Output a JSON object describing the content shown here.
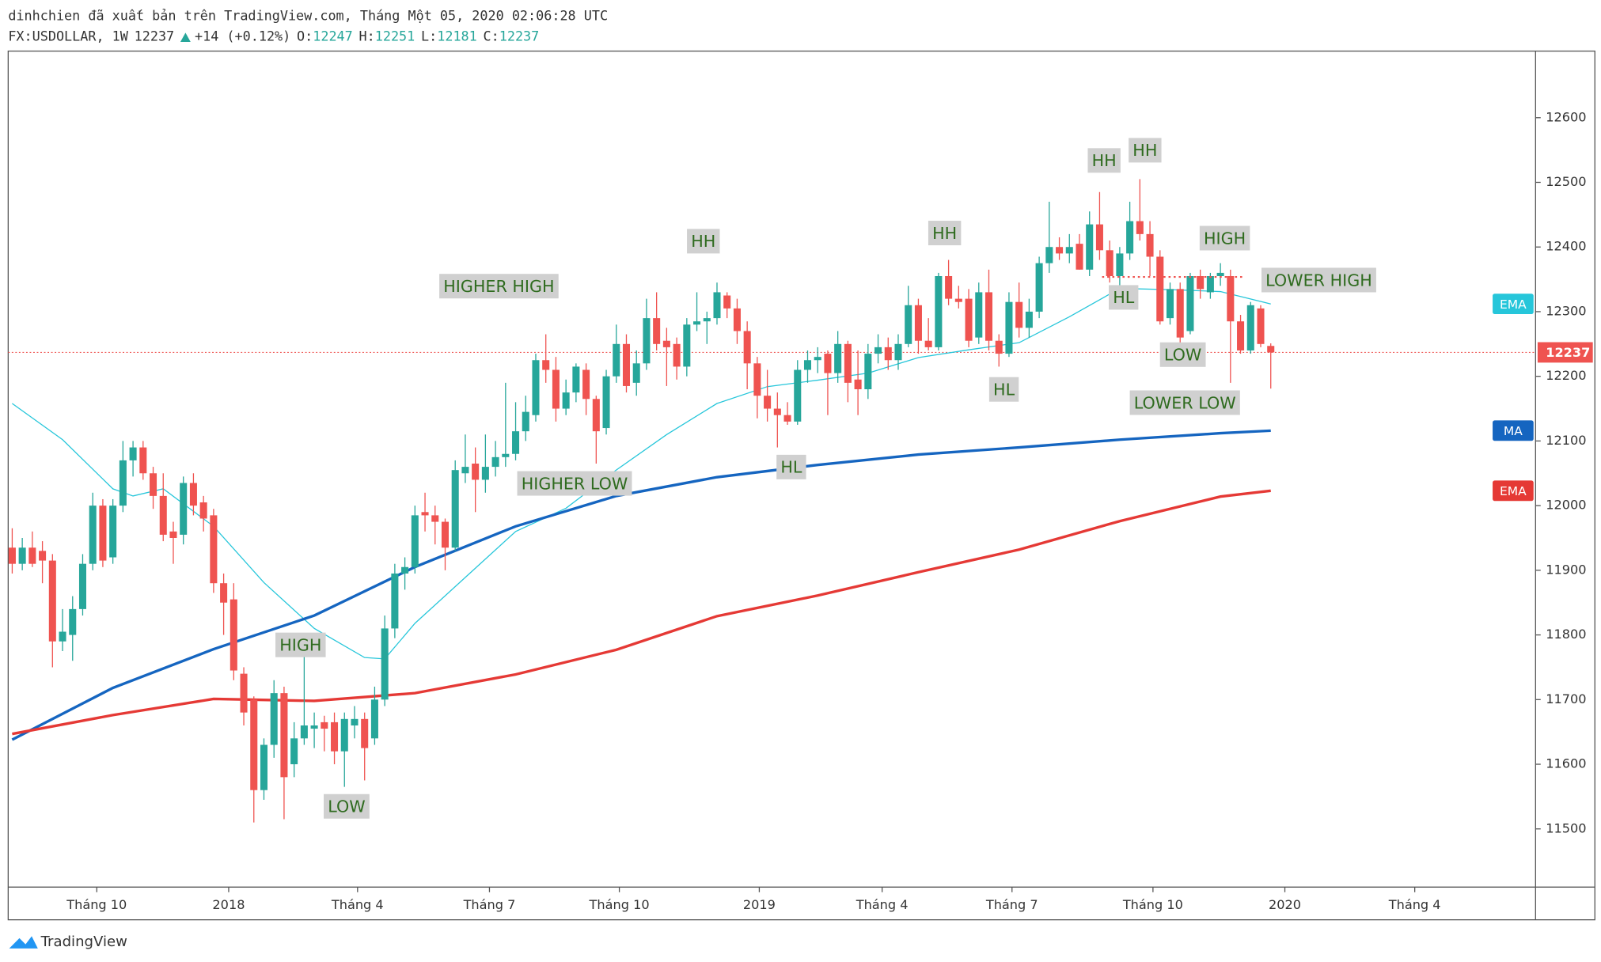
{
  "header": {
    "title": "dinhchien đã xuất bản trên TradingView.com, Tháng Một 05, 2020 02:06:28 UTC",
    "symbol": "FX:USDOLLAR, 1W",
    "change": "+14 (+0.12%)",
    "open_label": "O:",
    "high_label": "H:",
    "low_label": "L:",
    "close_label": "C:"
  },
  "footer": {
    "brand": "TradingView"
  },
  "chart_data": {
    "type": "candlestick",
    "up_color": "#26a69a",
    "down_color": "#ef5350",
    "candles": [
      [
        11935,
        11965,
        11895,
        11910
      ],
      [
        11910,
        11950,
        11900,
        11935
      ],
      [
        11935,
        11960,
        11905,
        11910
      ],
      [
        11930,
        11945,
        11880,
        11915
      ],
      [
        11915,
        11925,
        11750,
        11790
      ],
      [
        11790,
        11840,
        11775,
        11805
      ],
      [
        11800,
        11860,
        11760,
        11840
      ],
      [
        11840,
        11925,
        11830,
        11910
      ],
      [
        11910,
        12020,
        11900,
        12000
      ],
      [
        12000,
        12010,
        11905,
        11915
      ],
      [
        11920,
        12010,
        11910,
        12000
      ],
      [
        12000,
        12100,
        11990,
        12070
      ],
      [
        12070,
        12100,
        12045,
        12090
      ],
      [
        12090,
        12100,
        12040,
        12050
      ],
      [
        12050,
        12060,
        11995,
        12015
      ],
      [
        12015,
        12050,
        11945,
        11955
      ],
      [
        11960,
        11975,
        11910,
        11950
      ],
      [
        11955,
        12045,
        11940,
        12035
      ],
      [
        12035,
        12050,
        11985,
        12000
      ],
      [
        12005,
        12015,
        11960,
        11980
      ],
      [
        11985,
        11995,
        11865,
        11880
      ],
      [
        11880,
        11895,
        11800,
        11850
      ],
      [
        11855,
        11880,
        11730,
        11745
      ],
      [
        11740,
        11750,
        11660,
        11680
      ],
      [
        11700,
        11705,
        11510,
        11560
      ],
      [
        11560,
        11640,
        11545,
        11630
      ],
      [
        11630,
        11730,
        11610,
        11710
      ],
      [
        11710,
        11720,
        11515,
        11580
      ],
      [
        11600,
        11665,
        11580,
        11640
      ],
      [
        11640,
        11770,
        11630,
        11660
      ],
      [
        11655,
        11680,
        11625,
        11660
      ],
      [
        11665,
        11675,
        11620,
        11655
      ],
      [
        11665,
        11680,
        11600,
        11620
      ],
      [
        11620,
        11680,
        11565,
        11670
      ],
      [
        11660,
        11690,
        11640,
        11670
      ],
      [
        11670,
        11680,
        11575,
        11625
      ],
      [
        11640,
        11720,
        11630,
        11700
      ],
      [
        11700,
        11830,
        11690,
        11810
      ],
      [
        11810,
        11910,
        11795,
        11895
      ],
      [
        11895,
        11920,
        11870,
        11905
      ],
      [
        11905,
        12000,
        11895,
        11985
      ],
      [
        11990,
        12020,
        11960,
        11985
      ],
      [
        11985,
        12000,
        11940,
        11975
      ],
      [
        11975,
        11980,
        11900,
        11935
      ],
      [
        11935,
        12070,
        11930,
        12055
      ],
      [
        12050,
        12110,
        12035,
        12060
      ],
      [
        12065,
        12090,
        11990,
        12040
      ],
      [
        12040,
        12110,
        12020,
        12060
      ],
      [
        12060,
        12100,
        12045,
        12075
      ],
      [
        12075,
        12190,
        12060,
        12080
      ],
      [
        12080,
        12160,
        12070,
        12115
      ],
      [
        12115,
        12170,
        12100,
        12145
      ],
      [
        12140,
        12235,
        12130,
        12225
      ],
      [
        12225,
        12265,
        12190,
        12210
      ],
      [
        12210,
        12230,
        12130,
        12150
      ],
      [
        12150,
        12195,
        12140,
        12175
      ],
      [
        12175,
        12220,
        12160,
        12215
      ],
      [
        12210,
        12220,
        12140,
        12165
      ],
      [
        12165,
        12170,
        12065,
        12115
      ],
      [
        12120,
        12210,
        12110,
        12200
      ],
      [
        12200,
        12280,
        12190,
        12250
      ],
      [
        12250,
        12265,
        12175,
        12185
      ],
      [
        12190,
        12240,
        12170,
        12220
      ],
      [
        12220,
        12320,
        12210,
        12290
      ],
      [
        12290,
        12330,
        12240,
        12250
      ],
      [
        12255,
        12275,
        12185,
        12245
      ],
      [
        12250,
        12260,
        12195,
        12215
      ],
      [
        12215,
        12290,
        12200,
        12280
      ],
      [
        12280,
        12330,
        12270,
        12285
      ],
      [
        12285,
        12300,
        12250,
        12290
      ],
      [
        12290,
        12345,
        12280,
        12330
      ],
      [
        12325,
        12330,
        12290,
        12305
      ],
      [
        12305,
        12320,
        12250,
        12270
      ],
      [
        12270,
        12285,
        12180,
        12220
      ],
      [
        12220,
        12230,
        12135,
        12170
      ],
      [
        12170,
        12210,
        12130,
        12150
      ],
      [
        12150,
        12175,
        12090,
        12140
      ],
      [
        12140,
        12160,
        12125,
        12130
      ],
      [
        12130,
        12225,
        12125,
        12210
      ],
      [
        12210,
        12240,
        12190,
        12225
      ],
      [
        12225,
        12245,
        12205,
        12230
      ],
      [
        12235,
        12240,
        12140,
        12205
      ],
      [
        12205,
        12270,
        12190,
        12250
      ],
      [
        12250,
        12255,
        12160,
        12190
      ],
      [
        12195,
        12240,
        12140,
        12180
      ],
      [
        12180,
        12250,
        12165,
        12235
      ],
      [
        12235,
        12265,
        12220,
        12245
      ],
      [
        12245,
        12260,
        12210,
        12225
      ],
      [
        12225,
        12265,
        12210,
        12250
      ],
      [
        12250,
        12340,
        12245,
        12310
      ],
      [
        12310,
        12320,
        12235,
        12255
      ],
      [
        12255,
        12290,
        12240,
        12245
      ],
      [
        12245,
        12360,
        12240,
        12355
      ],
      [
        12355,
        12380,
        12310,
        12320
      ],
      [
        12320,
        12340,
        12305,
        12315
      ],
      [
        12320,
        12335,
        12245,
        12255
      ],
      [
        12260,
        12345,
        12250,
        12330
      ],
      [
        12330,
        12365,
        12240,
        12255
      ],
      [
        12255,
        12265,
        12215,
        12235
      ],
      [
        12235,
        12330,
        12230,
        12315
      ],
      [
        12315,
        12345,
        12260,
        12275
      ],
      [
        12275,
        12320,
        12260,
        12300
      ],
      [
        12300,
        12385,
        12290,
        12375
      ],
      [
        12375,
        12470,
        12360,
        12400
      ],
      [
        12400,
        12415,
        12380,
        12390
      ],
      [
        12390,
        12420,
        12375,
        12400
      ],
      [
        12405,
        12420,
        12365,
        12365
      ],
      [
        12365,
        12455,
        12355,
        12435
      ],
      [
        12435,
        12485,
        12380,
        12395
      ],
      [
        12395,
        12410,
        12345,
        12355
      ],
      [
        12355,
        12400,
        12340,
        12390
      ],
      [
        12390,
        12470,
        12380,
        12440
      ],
      [
        12440,
        12505,
        12410,
        12420
      ],
      [
        12420,
        12440,
        12355,
        12385
      ],
      [
        12385,
        12395,
        12280,
        12285
      ],
      [
        12290,
        12345,
        12280,
        12335
      ],
      [
        12335,
        12345,
        12250,
        12260
      ],
      [
        12270,
        12360,
        12265,
        12355
      ],
      [
        12355,
        12365,
        12320,
        12335
      ],
      [
        12330,
        12360,
        12320,
        12355
      ],
      [
        12355,
        12375,
        12340,
        12360
      ],
      [
        12355,
        12365,
        12190,
        12285
      ],
      [
        12285,
        12295,
        12235,
        12240
      ],
      [
        12240,
        12315,
        12235,
        12310
      ],
      [
        12305,
        12310,
        12245,
        12250
      ],
      [
        12247,
        12251,
        12181,
        12237
      ]
    ],
    "lines": [
      {
        "name": "EMA",
        "color": "#26c6da",
        "width": 1,
        "x": [
          0,
          5,
          10,
          12,
          15,
          20,
          25,
          30,
          35,
          37,
          40,
          45,
          50,
          55,
          60,
          65,
          70,
          75,
          80,
          85,
          90,
          95,
          100,
          105,
          110,
          115,
          120,
          125
        ],
        "values": [
          12158,
          12102,
          12026,
          12015,
          12026,
          11968,
          11881,
          11810,
          11765,
          11763,
          11818,
          11889,
          11960,
          11996,
          12055,
          12110,
          12158,
          12184,
          12194,
          12205,
          12229,
          12241,
          12252,
          12292,
          12336,
          12334,
          12331,
          12312
        ]
      },
      {
        "name": "MA",
        "color": "#1565c0",
        "width": 2.6,
        "x": [
          0,
          10,
          20,
          30,
          40,
          50,
          60,
          70,
          80,
          90,
          100,
          110,
          120,
          125
        ],
        "values": [
          11638,
          11718,
          11778,
          11830,
          11905,
          11968,
          12015,
          12044,
          12063,
          12079,
          12090,
          12102,
          12112,
          12116
        ]
      },
      {
        "name": "EMA",
        "color": "#e53935",
        "width": 2.6,
        "x": [
          0,
          10,
          20,
          30,
          40,
          50,
          60,
          70,
          80,
          90,
          100,
          110,
          120,
          125
        ],
        "values": [
          11647,
          11676,
          11701,
          11698,
          11710,
          11739,
          11777,
          11829,
          11861,
          11897,
          11932,
          11976,
          12014,
          12023
        ]
      }
    ],
    "annotations": [
      "HIGHER HIGH",
      "HH",
      "HH",
      "HH",
      "HH",
      "HIGH",
      "LOWER HIGH",
      "HL",
      "LOW",
      "HL",
      "LOWER LOW",
      "HL",
      "HIGHER LOW",
      "HIGH",
      "LOW"
    ],
    "ylim": [
      11410,
      12703
    ],
    "yticks": [
      11500,
      11600,
      11700,
      11800,
      11900,
      12000,
      12100,
      12200,
      12300,
      12400,
      12500,
      12600
    ],
    "xlim": [
      -0.4,
      151.3
    ],
    "xticks": [
      {
        "value": 8.4,
        "label": "Tháng 10"
      },
      {
        "value": 21.5,
        "label": "2018"
      },
      {
        "value": 34.3,
        "label": "Tháng 4"
      },
      {
        "value": 47.4,
        "label": "Tháng 7"
      },
      {
        "value": 60.3,
        "label": "Tháng 10"
      },
      {
        "value": 74.2,
        "label": "2019"
      },
      {
        "value": 86.4,
        "label": "Tháng 4"
      },
      {
        "value": 99.3,
        "label": "Tháng 7"
      },
      {
        "value": 113.3,
        "label": "Tháng 10"
      },
      {
        "value": 126.4,
        "label": "2020"
      },
      {
        "value": 139.3,
        "label": "Tháng 4"
      }
    ]
  }
}
